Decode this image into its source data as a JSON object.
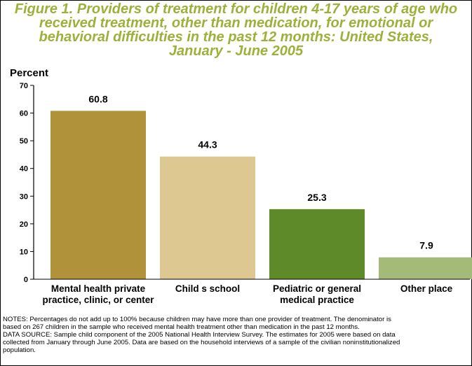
{
  "title": "Figure 1. Providers of treatment for children 4-17 years of age who received treatment, other than medication, for emotional or behavioral difficulties in the past 12 months: United States,",
  "title_line2": "January - June 2005",
  "chart_data": {
    "type": "bar",
    "title": "Figure 1. Providers of treatment for children 4-17 years of age who received treatment, other than medication, for emotional or behavioral difficulties in the past 12 months: United States, January - June 2005",
    "ylabel": "Percent",
    "xlabel": "",
    "ylim": [
      0,
      70
    ],
    "yticks": [
      0,
      10,
      20,
      30,
      40,
      50,
      60,
      70
    ],
    "grid": false,
    "categories": [
      [
        "Mental health private",
        "practice, clinic, or center"
      ],
      [
        "Child s school"
      ],
      [
        "Pediatric or general",
        "medical practice"
      ],
      [
        "Other place"
      ]
    ],
    "values": [
      60.8,
      44.3,
      25.3,
      7.9
    ],
    "value_labels": [
      "60.8",
      "44.3",
      "25.3",
      "7.9"
    ],
    "colors": [
      "#b0923a",
      "#dcc890",
      "#5e8a2a",
      "#a3ba78"
    ]
  },
  "notes": [
    "NOTES: Percentages do not add up to 100% because children may have more than one provider of treatment. The denominator is",
    "based on 267 children in the sample who received mental health treatment other than medication in the past 12 months.",
    "DATA SOURCE: Sample child component of the 2005 National Health Interview Survey. The estimates for 2005 were based on data",
    "collected from January through June 2005. Data are based on the household interviews of a sample of the civilian noninstitutionalized",
    "population."
  ]
}
